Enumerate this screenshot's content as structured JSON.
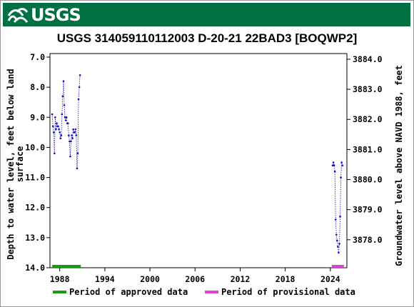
{
  "banner": {
    "logo_text": "USGS",
    "color": "#006f41"
  },
  "chart_data": {
    "type": "scatter",
    "title": "USGS 314059110112003 D-20-21 22BAD3 [BOQWP2]",
    "ylabel_left": "Depth to water level, feet below land surface",
    "ylabel_left_lines": [
      "Depth to water level, feet below land",
      "surface"
    ],
    "ylabel_right": "Groundwater level above NAVD 1988, feet",
    "x_ticks": [
      "1988",
      "1994",
      "2000",
      "2006",
      "2012",
      "2018",
      "2024"
    ],
    "x_tick_values": [
      1988,
      1994,
      2000,
      2006,
      2012,
      2018,
      2024
    ],
    "xlim": [
      1986.7,
      2026.2
    ],
    "y_left_ticks": [
      "7.0",
      "8.0",
      "9.0",
      "10.0",
      "11.0",
      "12.0",
      "13.0",
      "14.0"
    ],
    "y_left_tick_values": [
      7,
      8,
      9,
      10,
      11,
      12,
      13,
      14
    ],
    "ylim_left": [
      14.0,
      7.0
    ],
    "y_right_ticks": [
      "3884.0",
      "3883.0",
      "3882.0",
      "3881.0",
      "3880.0",
      "3879.0",
      "3878.0"
    ],
    "y_right_tick_values": [
      3884,
      3883,
      3882,
      3881,
      3880,
      3879,
      3878
    ],
    "right_offset": 3891.07,
    "grid": false,
    "legend_placement": "bottom",
    "series": [
      {
        "name": "Period of approved data",
        "color": "#1010cc",
        "period_color": "#1a9a1a",
        "period": [
          1987.0,
          1990.8
        ],
        "x": [
          1987.0,
          1987.1,
          1987.2,
          1987.3,
          1987.4,
          1987.5,
          1987.6,
          1987.7,
          1987.8,
          1987.9,
          1988.0,
          1988.1,
          1988.2,
          1988.3,
          1988.4,
          1988.5,
          1988.6,
          1988.7,
          1988.8,
          1988.9,
          1989.0,
          1989.1,
          1989.2,
          1989.3,
          1989.4,
          1989.5,
          1989.6,
          1989.7,
          1989.8,
          1989.9,
          1990.0,
          1990.1,
          1990.2,
          1990.3,
          1990.4,
          1990.5,
          1990.6,
          1990.7
        ],
        "y": [
          8.9,
          9.3,
          9.5,
          10.2,
          9.0,
          9.4,
          9.2,
          9.3,
          9.3,
          9.4,
          9.5,
          9.7,
          9.6,
          8.9,
          8.3,
          7.8,
          8.6,
          9.0,
          9.1,
          9.0,
          9.2,
          9.2,
          9.6,
          9.8,
          10.3,
          9.8,
          9.6,
          9.7,
          9.4,
          9.5,
          9.5,
          9.4,
          9.6,
          10.7,
          10.2,
          8.4,
          8.0,
          7.6
        ]
      },
      {
        "name": "Period of provisional data",
        "color": "#1010cc",
        "period_color": "#e040d0",
        "period": [
          2024.2,
          2025.8
        ],
        "x": [
          2024.3,
          2024.4,
          2024.5,
          2024.6,
          2024.7,
          2024.8,
          2024.9,
          2025.0,
          2025.1,
          2025.2,
          2025.3,
          2025.4,
          2025.5,
          2025.6
        ],
        "y": [
          10.6,
          10.5,
          10.6,
          10.8,
          12.4,
          12.9,
          13.1,
          13.3,
          13.5,
          13.2,
          12.3,
          11.0,
          10.5,
          10.6
        ]
      }
    ]
  }
}
